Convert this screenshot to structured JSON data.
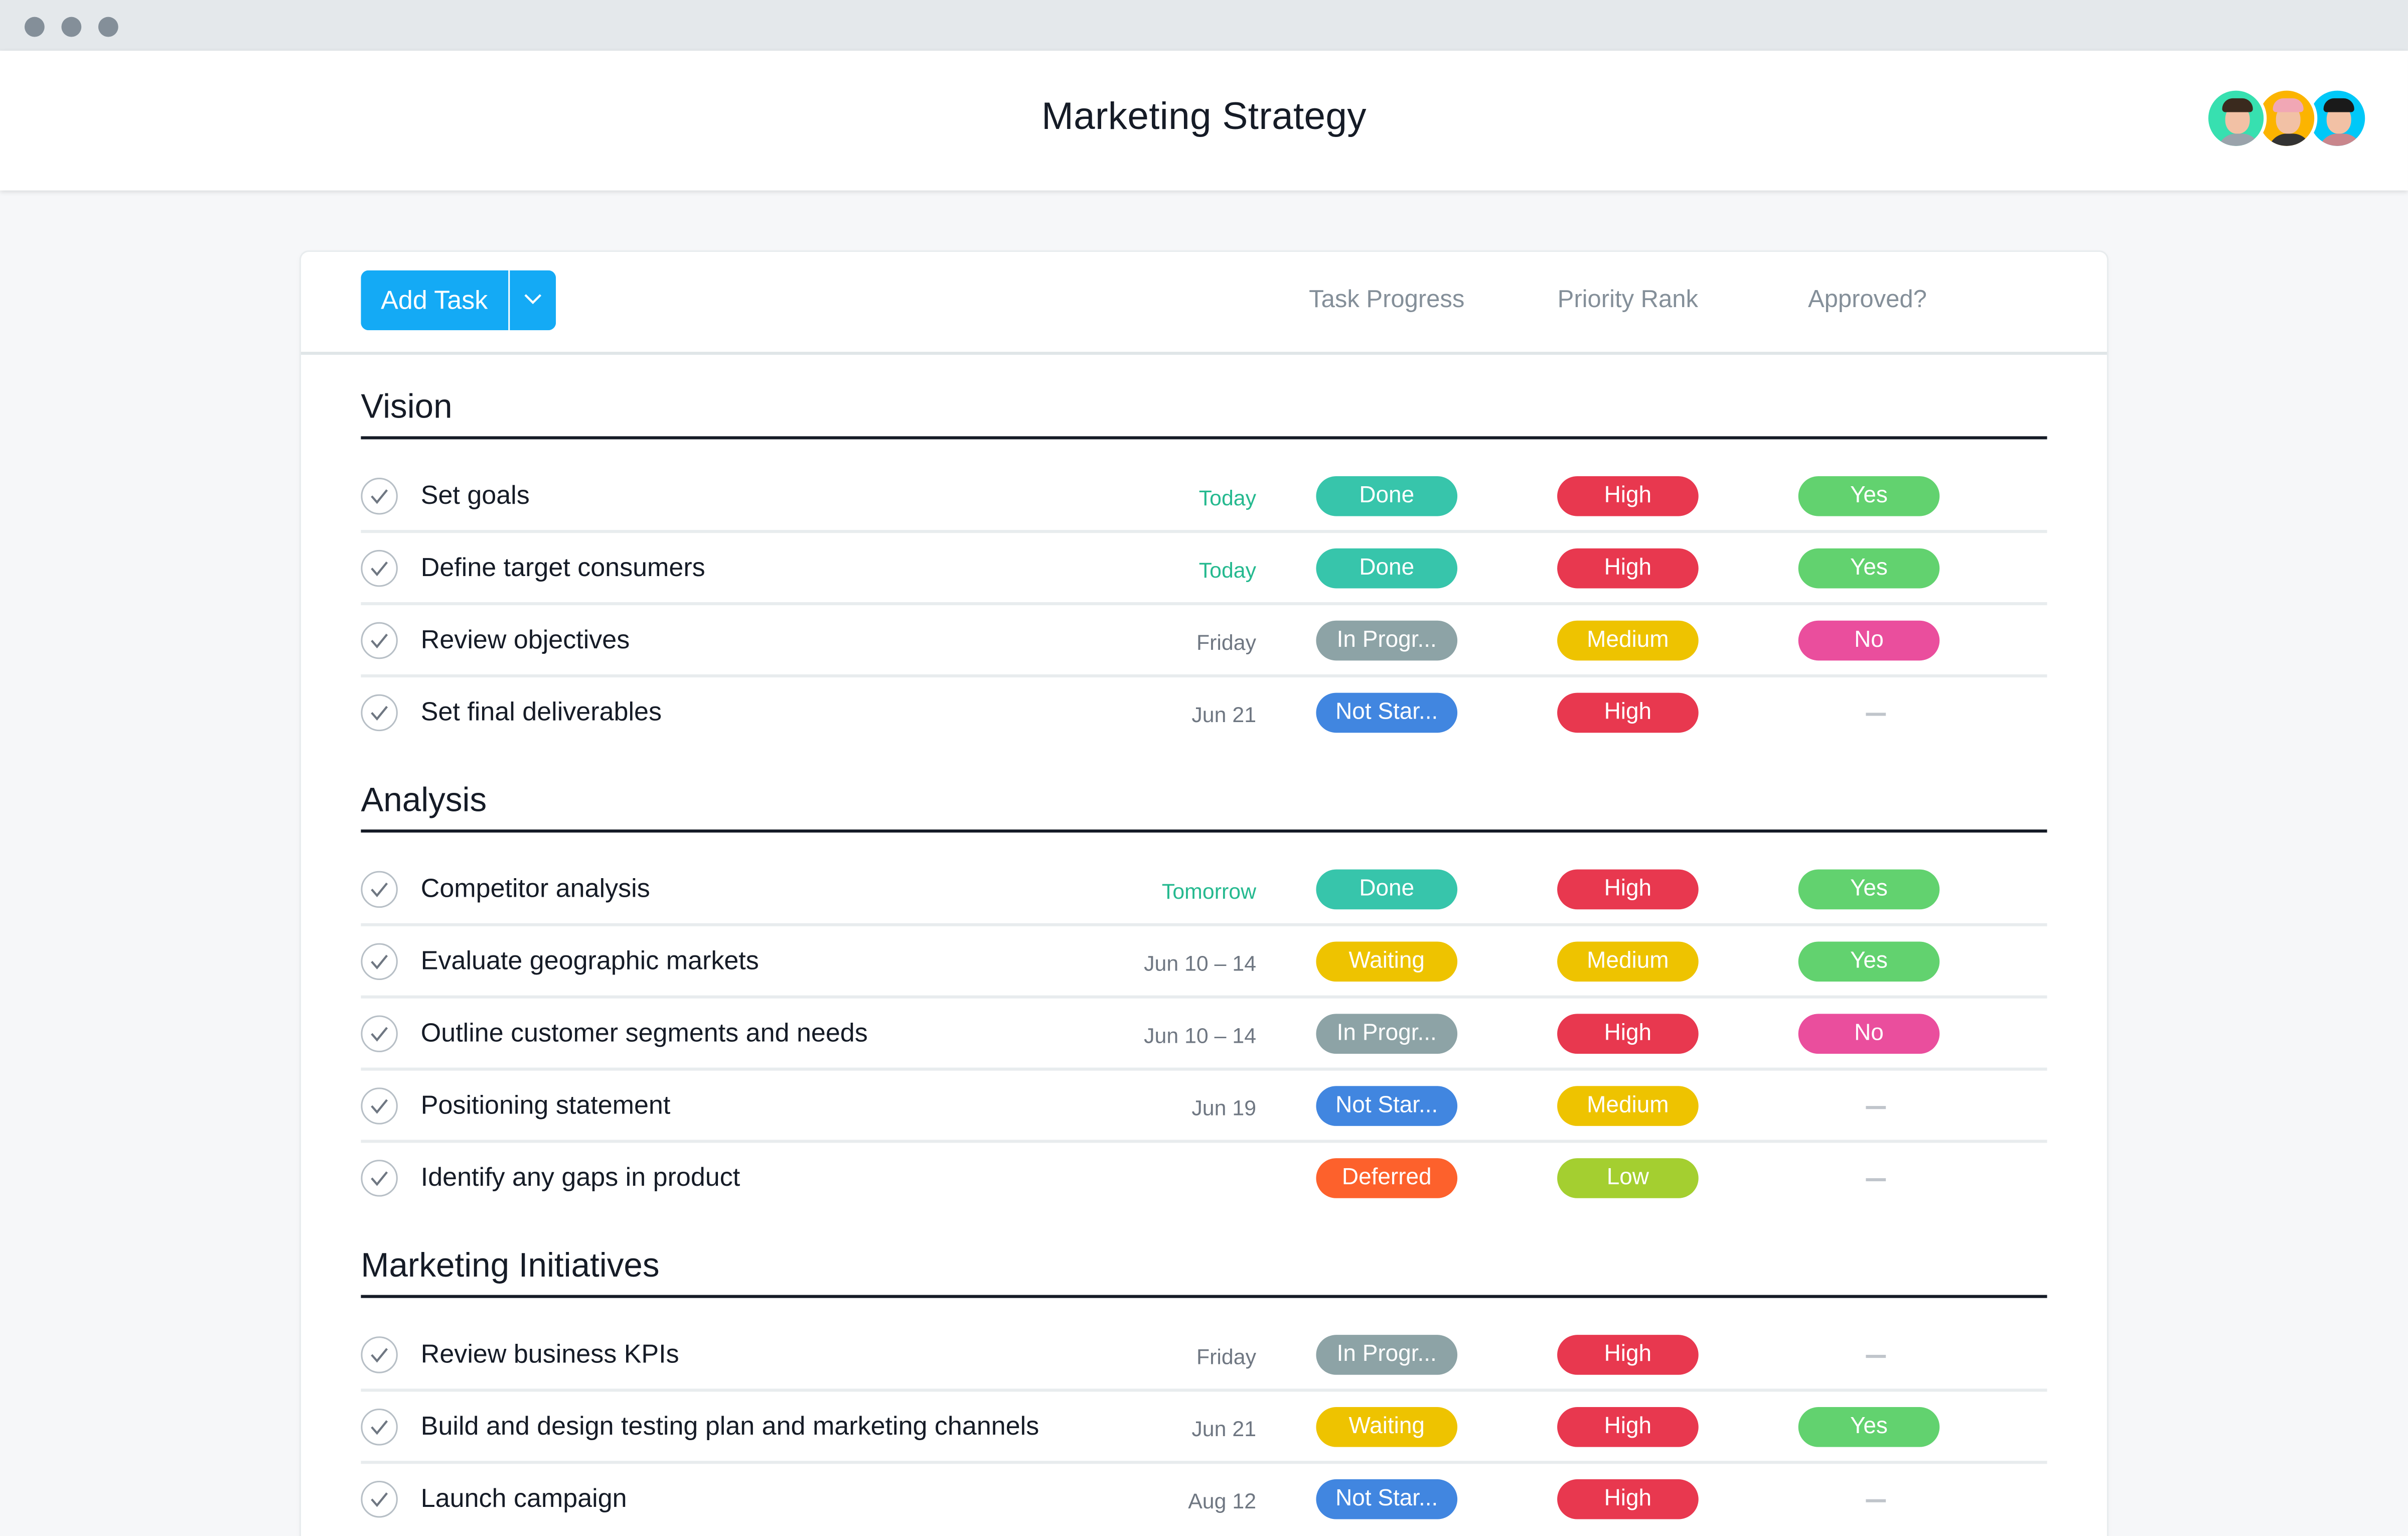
{
  "window": {
    "controls": [
      "close",
      "minimize",
      "maximize"
    ]
  },
  "header": {
    "title": "Marketing Strategy",
    "avatars": [
      {
        "name": "avatar-1",
        "bg": "#37e0b0",
        "hair": "#3a2a1e",
        "shirt": "#9aa3ab"
      },
      {
        "name": "avatar-2",
        "bg": "#fcb400",
        "hair": "#f1a7b5",
        "shirt": "#333333"
      },
      {
        "name": "avatar-3",
        "bg": "#00c8f8",
        "hair": "#1a1a1a",
        "shirt": "#c9868c"
      }
    ]
  },
  "toolbar": {
    "add_task_label": "Add Task",
    "dropdown_icon": "chevron-down-icon",
    "columns": [
      "Task Progress",
      "Priority Rank",
      "Approved?"
    ]
  },
  "colors": {
    "accent": "#14aaf5",
    "Done": "#37c5ab",
    "In Progr...": "#8da3a6",
    "Not Star...": "#4186e0",
    "Waiting": "#eec300",
    "Deferred": "#fd612c",
    "High": "#e8384f",
    "Medium": "#eec300",
    "Low": "#a4cf30",
    "Yes": "#62d26f",
    "No": "#ea4e9d",
    "due_soon": "#25b98f",
    "due_normal": "#6f7782"
  },
  "sections": [
    {
      "title": "Vision",
      "tasks": [
        {
          "name": "Set goals",
          "due": "Today",
          "due_soon": true,
          "progress": "Done",
          "priority": "High",
          "approved": "Yes"
        },
        {
          "name": "Define target consumers",
          "due": "Today",
          "due_soon": true,
          "progress": "Done",
          "priority": "High",
          "approved": "Yes"
        },
        {
          "name": "Review objectives",
          "due": "Friday",
          "due_soon": false,
          "progress": "In Progr...",
          "priority": "Medium",
          "approved": "No"
        },
        {
          "name": "Set final deliverables",
          "due": "Jun 21",
          "due_soon": false,
          "progress": "Not Star...",
          "priority": "High",
          "approved": "—"
        }
      ]
    },
    {
      "title": "Analysis",
      "tasks": [
        {
          "name": "Competitor analysis",
          "due": "Tomorrow",
          "due_soon": true,
          "progress": "Done",
          "priority": "High",
          "approved": "Yes"
        },
        {
          "name": "Evaluate geographic markets",
          "due": "Jun 10 – 14",
          "due_soon": false,
          "progress": "Waiting",
          "priority": "Medium",
          "approved": "Yes"
        },
        {
          "name": "Outline customer segments and needs",
          "due": "Jun 10 – 14",
          "due_soon": false,
          "progress": "In Progr...",
          "priority": "High",
          "approved": "No"
        },
        {
          "name": "Positioning statement",
          "due": "Jun 19",
          "due_soon": false,
          "progress": "Not Star...",
          "priority": "Medium",
          "approved": "—"
        },
        {
          "name": "Identify any gaps in product",
          "due": "",
          "due_soon": false,
          "progress": "Deferred",
          "priority": "Low",
          "approved": "—"
        }
      ]
    },
    {
      "title": "Marketing Initiatives",
      "tasks": [
        {
          "name": "Review business KPIs",
          "due": "Friday",
          "due_soon": false,
          "progress": "In Progr...",
          "priority": "High",
          "approved": "—"
        },
        {
          "name": "Build and design testing plan and marketing channels",
          "due": "Jun 21",
          "due_soon": false,
          "progress": "Waiting",
          "priority": "High",
          "approved": "Yes"
        },
        {
          "name": "Launch campaign",
          "due": "Aug 12",
          "due_soon": false,
          "progress": "Not Star...",
          "priority": "High",
          "approved": "—"
        }
      ]
    }
  ]
}
